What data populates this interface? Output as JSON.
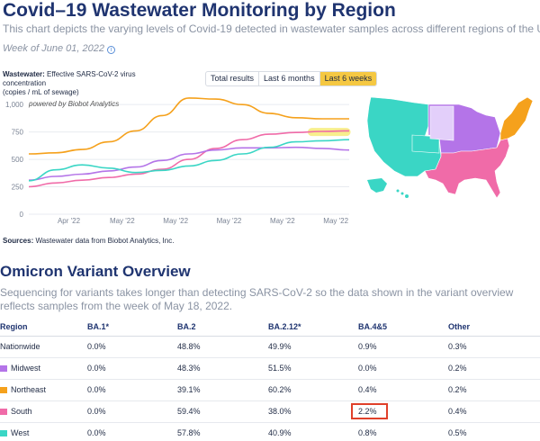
{
  "header": {
    "title": "Covid–19 Wastewater Monitoring by Region",
    "subtitle": "This chart depicts the varying levels of Covid-19 detected in wastewater samples across different regions of the U.S.",
    "week": "Week of June 01, 2022",
    "info_icon": "i"
  },
  "chart_controls": {
    "label_bold": "Wastewater:",
    "label_rest": " Effective SARS-CoV-2 virus concentration",
    "label_units": "(copies / mL of sewage)",
    "toggle": [
      "Total results",
      "Last 6 months",
      "Last 6 weeks"
    ],
    "active_toggle": "Last 6 weeks"
  },
  "chart_data": {
    "type": "line",
    "watermark": "powered by Biobot Analytics",
    "yticks": [
      "1,000",
      "750",
      "500",
      "250",
      "0"
    ],
    "ytick_values": [
      1000,
      750,
      500,
      250,
      0
    ],
    "ylim": [
      0,
      1100
    ],
    "x_categories": [
      "Apr '22",
      "May '22",
      "May '22",
      "May '22",
      "May '22",
      "May '22"
    ],
    "x": [
      0,
      1,
      2,
      3,
      4,
      5,
      6,
      7,
      8,
      9,
      10,
      11,
      12
    ],
    "xlim": [
      0,
      12
    ],
    "x_tick_positions": [
      1.5,
      3.5,
      5.5,
      7.5,
      9.5,
      11.5
    ],
    "series": [
      {
        "color": "#f5a11c",
        "values": [
          550,
          560,
          590,
          660,
          760,
          900,
          1060,
          1050,
          1000,
          920,
          880,
          870,
          870
        ]
      },
      {
        "color": "#f06ba8",
        "values": [
          250,
          285,
          310,
          335,
          365,
          410,
          500,
          600,
          680,
          730,
          745,
          755,
          760
        ]
      },
      {
        "color": "#b474e8",
        "values": [
          310,
          345,
          365,
          395,
          430,
          490,
          550,
          585,
          605,
          605,
          610,
          600,
          585
        ]
      },
      {
        "color": "#3ad6c5",
        "values": [
          305,
          405,
          450,
          420,
          380,
          400,
          440,
          490,
          550,
          610,
          660,
          670,
          680
        ]
      }
    ],
    "highlight": {
      "color": "#f7ec7a",
      "x_range": [
        10.6,
        11.9
      ],
      "y": 750
    }
  },
  "sources": {
    "label": "Sources:",
    "text": " Wastewater data from Biobot Analytics, Inc."
  },
  "map": {
    "regions": [
      {
        "name": "West",
        "color": "#3ad6c5"
      },
      {
        "name": "Midwest",
        "color": "#b474e8"
      },
      {
        "name": "Northeast",
        "color": "#f5a11c"
      },
      {
        "name": "South",
        "color": "#f06ba8"
      }
    ]
  },
  "variants": {
    "title": "Omicron Variant Overview",
    "description": "Sequencing for variants takes longer than detecting SARS-CoV-2 so the data shown in the variant overview reflects samples from the week of May 18, 2022.",
    "columns": [
      "Region",
      "BA.1*",
      "BA.2",
      "BA.2.12*",
      "BA.4&5",
      "Other"
    ],
    "rows": [
      {
        "region": "Nationwide",
        "color": "",
        "values": [
          "0.0%",
          "48.8%",
          "49.9%",
          "0.9%",
          "0.3%"
        ]
      },
      {
        "region": "Midwest",
        "color": "#b474e8",
        "values": [
          "0.0%",
          "48.3%",
          "51.5%",
          "0.0%",
          "0.2%"
        ]
      },
      {
        "region": "Northeast",
        "color": "#f5a11c",
        "values": [
          "0.0%",
          "39.1%",
          "60.2%",
          "0.4%",
          "0.2%"
        ]
      },
      {
        "region": "South",
        "color": "#f06ba8",
        "values": [
          "0.0%",
          "59.4%",
          "38.0%",
          "2.2%",
          "0.4%"
        ]
      },
      {
        "region": "West",
        "color": "#3ad6c5",
        "values": [
          "0.0%",
          "57.8%",
          "40.9%",
          "0.8%",
          "0.5%"
        ]
      }
    ]
  }
}
